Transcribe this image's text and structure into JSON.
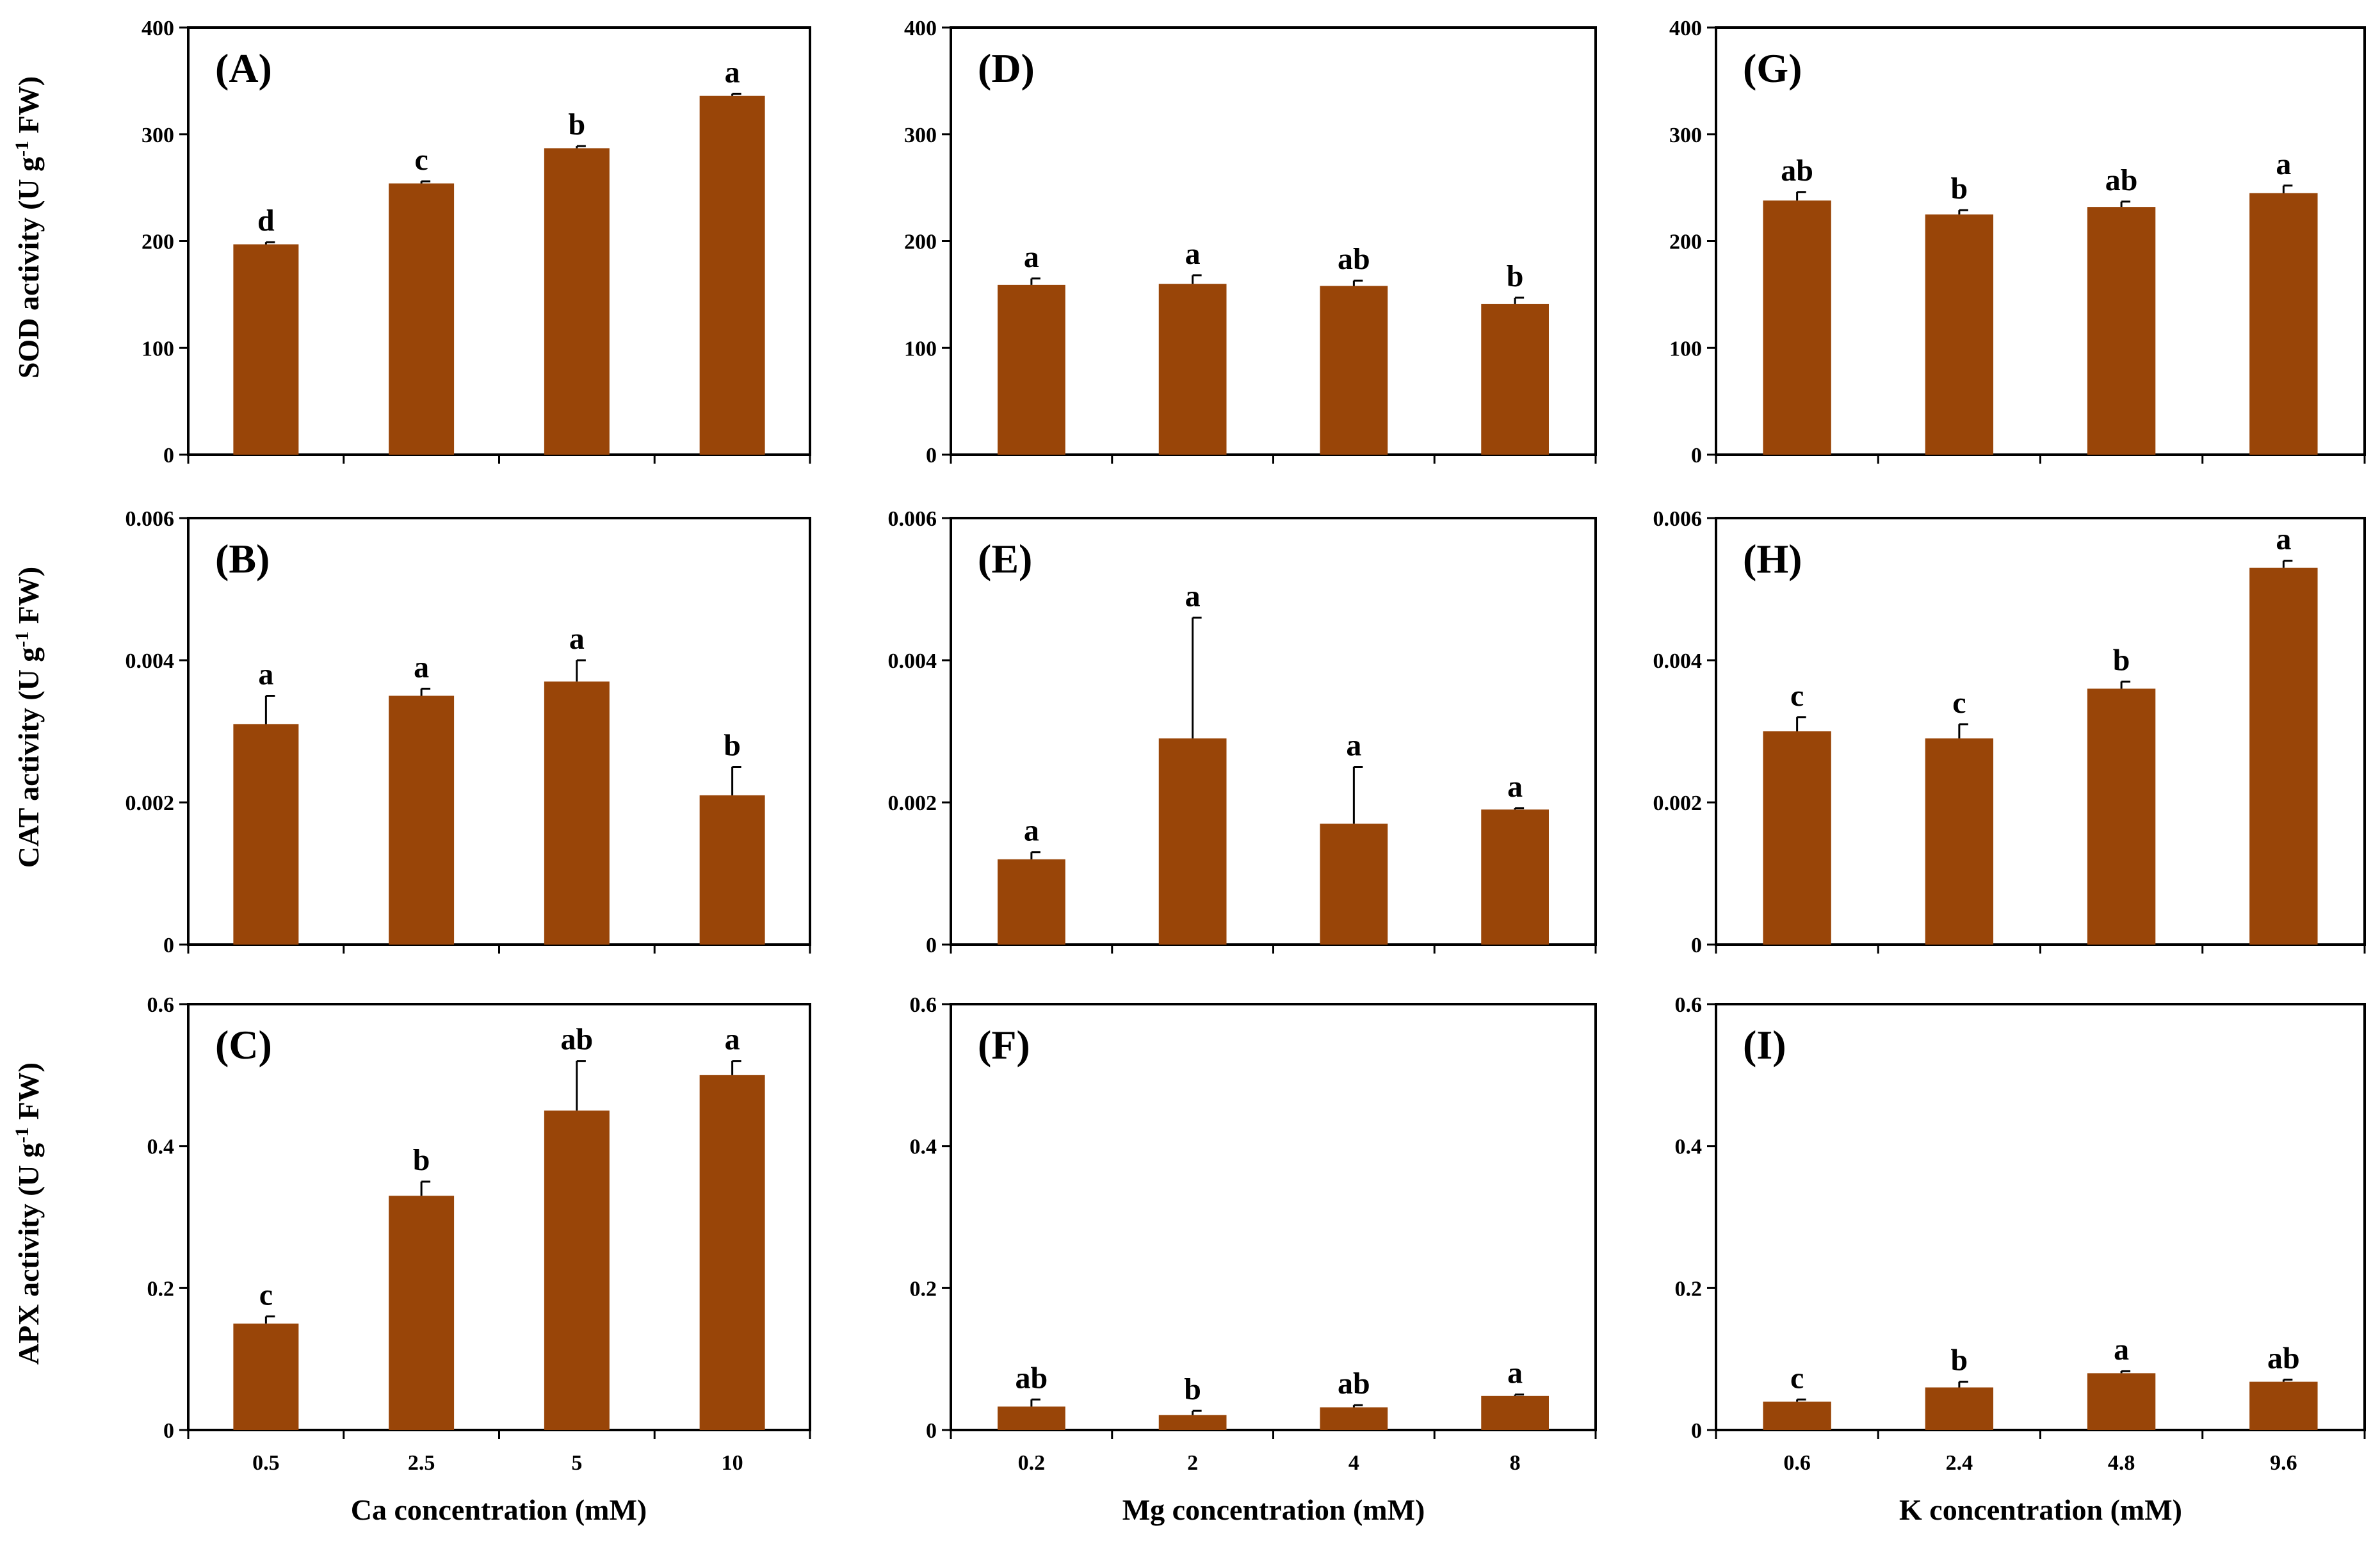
{
  "bar_color": "#994508",
  "x_titles": [
    "Ca concentration (mM)",
    "Mg concentration (mM)",
    "K concentration (mM)"
  ],
  "y_titles": [
    {
      "pre": "SOD activity (U g",
      "sup": "-1",
      "post": " FW)"
    },
    {
      "pre": "CAT activity (U g",
      "sup": "-1",
      "post": " FW)"
    },
    {
      "pre": "APX activity (U g",
      "sup": "-1",
      "post": " FW)"
    }
  ],
  "chart_data": [
    {
      "type": "bar",
      "panel": "(A)",
      "categories": [
        "0.5",
        "2.5",
        "5",
        "10"
      ],
      "values": [
        197,
        254,
        287,
        336
      ],
      "errors": [
        2,
        2,
        2,
        2
      ],
      "labels": [
        "d",
        "c",
        "b",
        "a"
      ],
      "ylim": [
        0,
        400
      ],
      "yticks": [
        "0",
        "100",
        "200",
        "300",
        "400"
      ]
    },
    {
      "type": "bar",
      "panel": "(B)",
      "categories": [
        "0.5",
        "2.5",
        "5",
        "10"
      ],
      "values": [
        0.0031,
        0.0035,
        0.0037,
        0.0021
      ],
      "errors": [
        0.0004,
        0.0001,
        0.0003,
        0.0004
      ],
      "labels": [
        "a",
        "a",
        "a",
        "b"
      ],
      "ylim": [
        0,
        0.006
      ],
      "yticks": [
        "0",
        "0.002",
        "0.004",
        "0.006"
      ]
    },
    {
      "type": "bar",
      "panel": "(C)",
      "categories": [
        "0.5",
        "2.5",
        "5",
        "10"
      ],
      "values": [
        0.15,
        0.33,
        0.45,
        0.5
      ],
      "errors": [
        0.01,
        0.02,
        0.07,
        0.02
      ],
      "labels": [
        "c",
        "b",
        "ab",
        "a"
      ],
      "ylim": [
        0,
        0.6
      ],
      "yticks": [
        "0",
        "0.2",
        "0.4",
        "0.6"
      ]
    },
    {
      "type": "bar",
      "panel": "(D)",
      "categories": [
        "0.2",
        "2",
        "4",
        "8"
      ],
      "values": [
        159,
        160,
        158,
        141
      ],
      "errors": [
        6,
        8,
        5,
        6
      ],
      "labels": [
        "a",
        "a",
        "ab",
        "b"
      ],
      "ylim": [
        0,
        400
      ],
      "yticks": [
        "0",
        "100",
        "200",
        "300",
        "400"
      ]
    },
    {
      "type": "bar",
      "panel": "(E)",
      "categories": [
        "0.2",
        "2",
        "4",
        "8"
      ],
      "values": [
        0.0012,
        0.0029,
        0.0017,
        0.0019
      ],
      "errors": [
        0.0001,
        0.0017,
        0.0008,
        2e-05
      ],
      "labels": [
        "a",
        "a",
        "a",
        "a"
      ],
      "ylim": [
        0,
        0.006
      ],
      "yticks": [
        "0",
        "0.002",
        "0.004",
        "0.006"
      ]
    },
    {
      "type": "bar",
      "panel": "(F)",
      "categories": [
        "0.2",
        "2",
        "4",
        "8"
      ],
      "values": [
        0.033,
        0.021,
        0.032,
        0.048
      ],
      "errors": [
        0.01,
        0.006,
        0.003,
        0.002
      ],
      "labels": [
        "ab",
        "b",
        "ab",
        "a"
      ],
      "ylim": [
        0,
        0.6
      ],
      "yticks": [
        "0",
        "0.2",
        "0.4",
        "0.6"
      ]
    },
    {
      "type": "bar",
      "panel": "(G)",
      "categories": [
        "0.6",
        "2.4",
        "4.8",
        "9.6"
      ],
      "values": [
        238,
        225,
        232,
        245
      ],
      "errors": [
        8,
        4,
        5,
        7
      ],
      "labels": [
        "ab",
        "b",
        "ab",
        "a"
      ],
      "ylim": [
        0,
        400
      ],
      "yticks": [
        "0",
        "100",
        "200",
        "300",
        "400"
      ]
    },
    {
      "type": "bar",
      "panel": "(H)",
      "categories": [
        "0.6",
        "2.4",
        "4.8",
        "9.6"
      ],
      "values": [
        0.003,
        0.0029,
        0.0036,
        0.0053
      ],
      "errors": [
        0.0002,
        0.0002,
        0.0001,
        0.0001
      ],
      "labels": [
        "c",
        "c",
        "b",
        "a"
      ],
      "ylim": [
        0,
        0.006
      ],
      "yticks": [
        "0",
        "0.002",
        "0.004",
        "0.006"
      ]
    },
    {
      "type": "bar",
      "panel": "(I)",
      "categories": [
        "0.6",
        "2.4",
        "4.8",
        "9.6"
      ],
      "values": [
        0.04,
        0.06,
        0.08,
        0.068
      ],
      "errors": [
        0.003,
        0.008,
        0.003,
        0.003
      ],
      "labels": [
        "c",
        "b",
        "a",
        "ab"
      ],
      "ylim": [
        0,
        0.6
      ],
      "yticks": [
        "0",
        "0.2",
        "0.4",
        "0.6"
      ]
    }
  ]
}
